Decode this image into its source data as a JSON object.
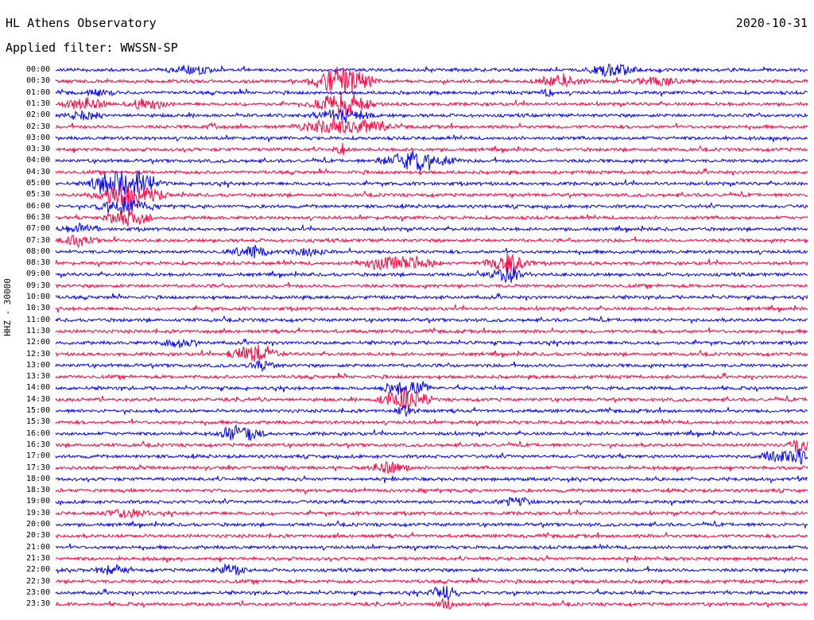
{
  "header": {
    "title": "HL Athens Observatory",
    "date": "2020-10-31",
    "filter": "Applied filter: WWSSN-SP",
    "channel_label": "HHZ - 30000"
  },
  "colors": {
    "even_trace": "#0000ff",
    "odd_trace": "#ff0040"
  },
  "time_labels": [
    "00:00",
    "00:30",
    "01:00",
    "01:30",
    "02:00",
    "02:30",
    "03:00",
    "03:30",
    "04:00",
    "04:30",
    "05:00",
    "05:30",
    "06:00",
    "06:30",
    "07:00",
    "07:30",
    "08:00",
    "08:30",
    "09:00",
    "09:30",
    "10:00",
    "10:30",
    "11:00",
    "11:30",
    "12:00",
    "12:30",
    "13:00",
    "13:30",
    "14:00",
    "14:30",
    "15:00",
    "15:30",
    "16:00",
    "16:30",
    "17:00",
    "17:30",
    "18:00",
    "18:30",
    "19:00",
    "19:30",
    "20:00",
    "20:30",
    "21:00",
    "21:30",
    "22:00",
    "22:30",
    "23:00",
    "23:30"
  ]
}
